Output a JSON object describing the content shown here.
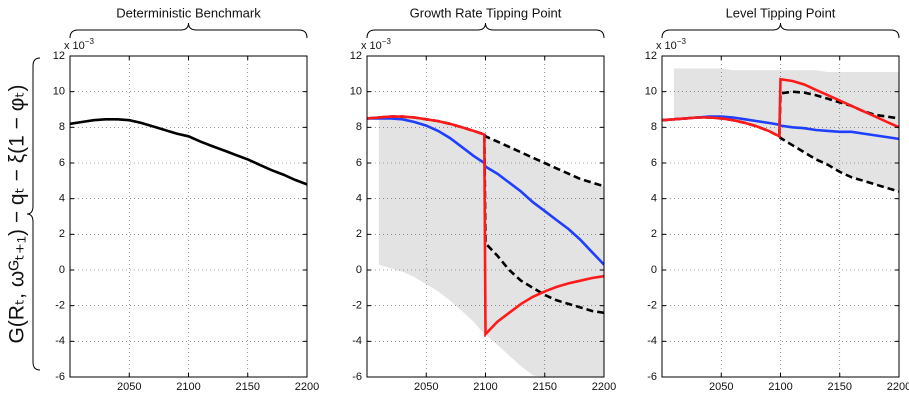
{
  "chart_data": [
    {
      "type": "line",
      "title": "Deterministic Benchmark",
      "ylabel": "G(Rₜ, ωᴳₜ₊₁) − qₜ − ξ(1 − φₜ)",
      "y_scale_label": "x 10",
      "y_scale_exponent": "−3",
      "x": [
        2000,
        2010,
        2020,
        2030,
        2040,
        2050,
        2060,
        2070,
        2080,
        2090,
        2100,
        2110,
        2120,
        2130,
        2140,
        2150,
        2160,
        2170,
        2180,
        2190,
        2200
      ],
      "series": [
        {
          "color": "#000000",
          "style": "solid",
          "values": [
            8.2,
            8.3,
            8.4,
            8.45,
            8.45,
            8.4,
            8.25,
            8.05,
            7.85,
            7.65,
            7.5,
            7.2,
            6.95,
            6.7,
            6.45,
            6.2,
            5.9,
            5.6,
            5.35,
            5.05,
            4.8
          ]
        }
      ],
      "xlim": [
        2000,
        2200
      ],
      "ylim": [
        -6,
        12
      ],
      "xticks": [
        2050,
        2100,
        2150,
        2200
      ],
      "yticks": [
        -6,
        -4,
        -2,
        0,
        2,
        4,
        6,
        8,
        10,
        12
      ],
      "grid": true
    },
    {
      "type": "line",
      "title": "Growth Rate Tipping Point",
      "y_scale_label": "x 10",
      "y_scale_exponent": "−3",
      "x": [
        2000,
        2010,
        2020,
        2030,
        2040,
        2050,
        2060,
        2070,
        2080,
        2090,
        2099,
        2100,
        2110,
        2120,
        2130,
        2140,
        2150,
        2160,
        2170,
        2180,
        2190,
        2200
      ],
      "band": {
        "color": "#e3e3e3",
        "upper": [
          8.5,
          8.55,
          8.6,
          8.6,
          8.55,
          8.45,
          8.35,
          8.2,
          8.0,
          7.8,
          7.6,
          7.5,
          7.2,
          6.9,
          6.6,
          6.3,
          6.0,
          5.7,
          5.4,
          5.1,
          4.9,
          4.7
        ],
        "lower": [
          null,
          0.3,
          0.1,
          -0.1,
          -0.4,
          -0.8,
          -1.2,
          -1.7,
          -2.3,
          -2.9,
          -3.6,
          -3.6,
          -4.2,
          -4.8,
          -5.4,
          -5.9,
          -6,
          -6,
          -6,
          -6,
          -6,
          -6
        ]
      },
      "series": [
        {
          "color": "#000000",
          "style": "dashed",
          "values": [
            null,
            null,
            null,
            null,
            null,
            null,
            null,
            null,
            null,
            null,
            7.6,
            7.5,
            7.2,
            6.9,
            6.6,
            6.3,
            6.0,
            5.7,
            5.4,
            5.1,
            4.9,
            4.7
          ]
        },
        {
          "color": "#000000",
          "style": "dashed",
          "values": [
            8.5,
            8.55,
            8.6,
            8.6,
            8.55,
            8.45,
            8.35,
            8.2,
            8.0,
            7.8,
            7.6,
            1.5,
            0.8,
            0.0,
            -0.6,
            -1.0,
            -1.4,
            -1.7,
            -1.9,
            -2.1,
            -2.3,
            -2.4
          ]
        },
        {
          "color": "#1f3fff",
          "style": "solid",
          "values": [
            8.5,
            8.5,
            8.5,
            8.45,
            8.3,
            8.1,
            7.8,
            7.4,
            6.9,
            6.4,
            6.0,
            5.8,
            5.4,
            4.9,
            4.4,
            3.8,
            3.3,
            2.8,
            2.3,
            1.7,
            1.0,
            0.3
          ]
        },
        {
          "color": "#ff1a1a",
          "style": "solid",
          "values": [
            8.5,
            8.55,
            8.6,
            8.6,
            8.55,
            8.45,
            8.35,
            8.2,
            8.0,
            7.8,
            7.6,
            -3.6,
            -2.9,
            -2.4,
            -1.9,
            -1.5,
            -1.2,
            -0.95,
            -0.75,
            -0.6,
            -0.45,
            -0.35
          ]
        }
      ],
      "xlim": [
        2000,
        2200
      ],
      "ylim": [
        -6,
        12
      ],
      "xticks": [
        2050,
        2100,
        2150,
        2200
      ],
      "yticks": [
        -6,
        -4,
        -2,
        0,
        2,
        4,
        6,
        8,
        10,
        12
      ],
      "grid": true
    },
    {
      "type": "line",
      "title": "Level Tipping Point",
      "y_scale_label": "x 10",
      "y_scale_exponent": "−3",
      "x": [
        2000,
        2010,
        2020,
        2030,
        2040,
        2050,
        2060,
        2070,
        2080,
        2090,
        2099,
        2100,
        2110,
        2120,
        2130,
        2140,
        2150,
        2160,
        2170,
        2180,
        2190,
        2200
      ],
      "band": {
        "color": "#e3e3e3",
        "upper": [
          null,
          11.3,
          11.3,
          11.3,
          11.3,
          11.3,
          11.2,
          11.2,
          11.2,
          11.2,
          11.2,
          11.2,
          11.2,
          11.2,
          11.2,
          11.1,
          11.1,
          11.1,
          11.1,
          11.1,
          11.1,
          11.1
        ],
        "lower": [
          null,
          8.45,
          8.5,
          8.55,
          8.55,
          8.5,
          8.4,
          8.25,
          8.05,
          7.8,
          7.5,
          7.4,
          7.0,
          6.6,
          6.2,
          5.9,
          5.5,
          5.2,
          5.0,
          4.8,
          4.6,
          4.4
        ]
      },
      "series": [
        {
          "color": "#000000",
          "style": "dashed",
          "values": [
            null,
            null,
            null,
            null,
            null,
            null,
            null,
            null,
            null,
            null,
            7.5,
            7.4,
            7.0,
            6.6,
            6.2,
            5.9,
            5.5,
            5.2,
            5.0,
            4.8,
            4.6,
            4.4
          ]
        },
        {
          "color": "#000000",
          "style": "dashed",
          "values": [
            8.4,
            8.45,
            8.5,
            8.55,
            8.55,
            8.5,
            8.4,
            8.25,
            8.05,
            7.8,
            7.5,
            9.9,
            10.0,
            9.95,
            9.8,
            9.6,
            9.4,
            9.2,
            8.9,
            8.7,
            8.6,
            8.5
          ]
        },
        {
          "color": "#1f3fff",
          "style": "solid",
          "values": [
            8.4,
            8.45,
            8.5,
            8.55,
            8.6,
            8.6,
            8.55,
            8.45,
            8.35,
            8.25,
            8.15,
            8.1,
            8.0,
            7.95,
            7.85,
            7.8,
            7.75,
            7.75,
            7.65,
            7.55,
            7.45,
            7.35
          ]
        },
        {
          "color": "#ff1a1a",
          "style": "solid",
          "values": [
            8.4,
            8.45,
            8.5,
            8.55,
            8.55,
            8.5,
            8.4,
            8.25,
            8.05,
            7.8,
            7.5,
            10.7,
            10.6,
            10.4,
            10.1,
            9.8,
            9.5,
            9.2,
            8.9,
            8.6,
            8.3,
            8.0
          ]
        }
      ],
      "xlim": [
        2000,
        2200
      ],
      "ylim": [
        -6,
        12
      ],
      "xticks": [
        2050,
        2100,
        2150,
        2200
      ],
      "yticks": [
        -6,
        -4,
        -2,
        0,
        2,
        4,
        6,
        8,
        10,
        12
      ],
      "grid": true
    }
  ]
}
